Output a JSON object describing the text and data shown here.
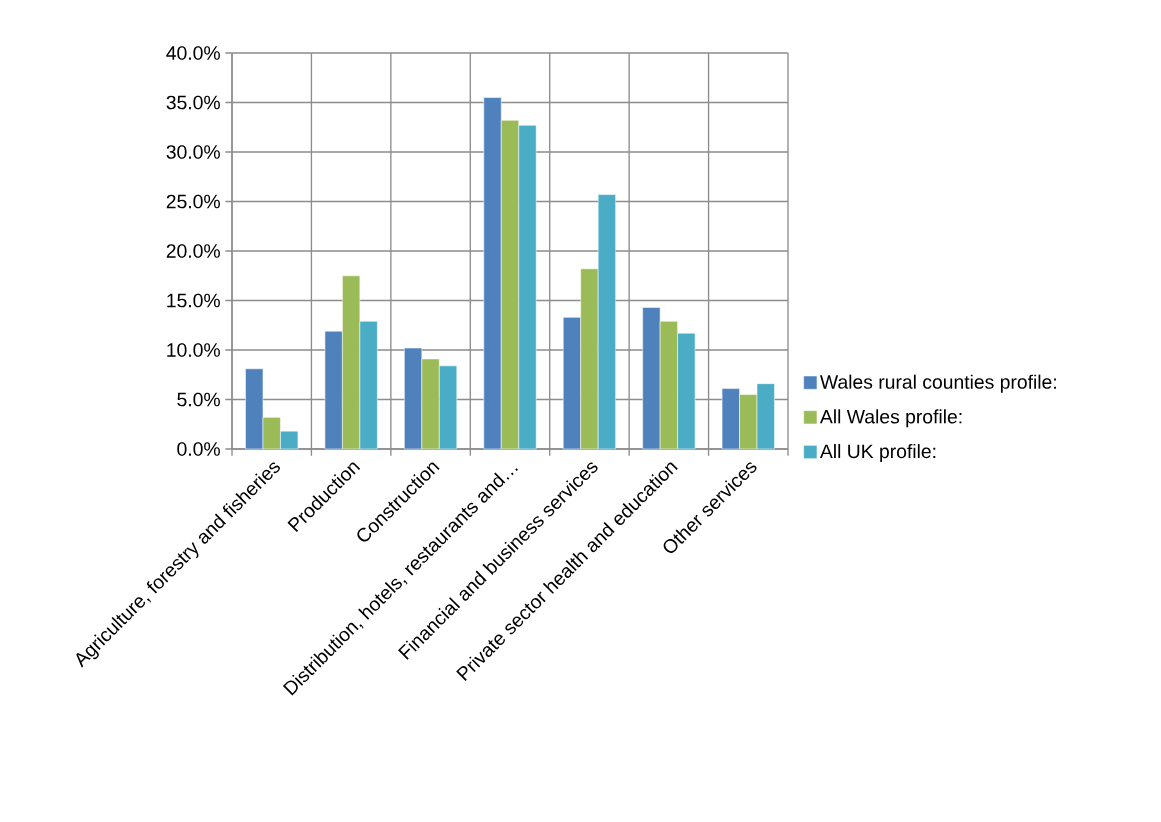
{
  "chart_data": {
    "type": "bar",
    "categories": [
      "Agriculture, forestry and fisheries",
      "Production",
      "Construction",
      "Distribution, hotels, restaurants and…",
      "Financial and business services",
      "Private sector health and education",
      "Other services"
    ],
    "series": [
      {
        "name": "Wales rural counties profile:",
        "color": "#4f81bd",
        "values": [
          8.1,
          11.9,
          10.2,
          35.5,
          13.3,
          14.3,
          6.1
        ]
      },
      {
        "name": "All Wales profile:",
        "color": "#9bbb59",
        "values": [
          3.2,
          17.5,
          9.1,
          33.2,
          18.2,
          12.9,
          5.5
        ]
      },
      {
        "name": "All UK profile:",
        "color": "#4bacc6",
        "values": [
          1.8,
          12.9,
          8.4,
          32.7,
          25.7,
          11.7,
          6.6
        ]
      }
    ],
    "ylim": [
      0,
      40
    ],
    "yticks": [
      {
        "value": 0,
        "label": "0.0%"
      },
      {
        "value": 5,
        "label": "5.0%"
      },
      {
        "value": 10,
        "label": "10.0%"
      },
      {
        "value": 15,
        "label": "15.0%"
      },
      {
        "value": 20,
        "label": "20.0%"
      },
      {
        "value": 25,
        "label": "25.0%"
      },
      {
        "value": 30,
        "label": "30.0%"
      },
      {
        "value": 35,
        "label": "35.0%"
      },
      {
        "value": 40,
        "label": "40.0%"
      }
    ],
    "grid": true,
    "legend": "right"
  }
}
